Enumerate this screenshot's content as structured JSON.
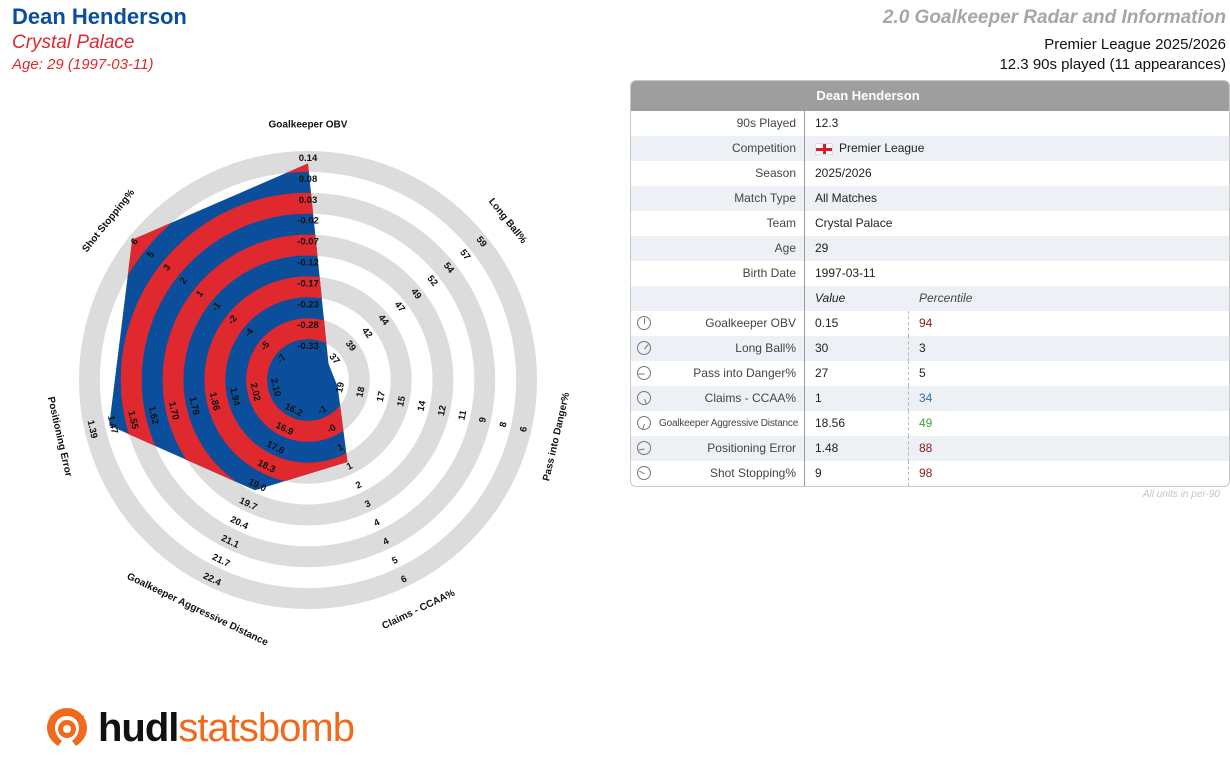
{
  "header": {
    "player_name": "Dean Henderson",
    "team": "Crystal Palace",
    "age_line": "Age: 29 (1997-03-11)",
    "report_title": "2.0 Goalkeeper Radar and Information",
    "competition_line": "Premier League 2025/2026",
    "played_line": "12.3 90s played (11 appearances)"
  },
  "colors": {
    "primary_blue": "#0b4f9c",
    "secondary_red": "#e0282f",
    "ring_grey": "#dcdcdc",
    "pct_high": "#8b1a1a",
    "pct_mid": "#3e9e3e",
    "pct_low_blue": "#2b6fad",
    "pct_low": "#222222"
  },
  "chart_data": {
    "type": "radar",
    "rings": 5,
    "axes": [
      {
        "name": "Goalkeeper OBV",
        "ticks": [
          "0.14",
          "0.08",
          "0.03",
          "-0.02",
          "-0.07",
          "-0.12",
          "-0.17",
          "-0.23",
          "-0.28",
          "-0.33"
        ],
        "value": 0.15,
        "percentile": 94
      },
      {
        "name": "Long Ball%",
        "ticks": [
          "59",
          "57",
          "54",
          "52",
          "49",
          "47",
          "44",
          "42",
          "39",
          "37"
        ],
        "value": 30,
        "percentile": 3
      },
      {
        "name": "Pass into Danger%",
        "ticks": [
          "6",
          "8",
          "9",
          "11",
          "12",
          "14",
          "15",
          "17",
          "18",
          "19"
        ],
        "value": 27,
        "percentile": 5
      },
      {
        "name": "Claims - CCAA%",
        "ticks": [
          "6",
          "5",
          "4",
          "4",
          "3",
          "2",
          "1",
          "1",
          "-0",
          "-1"
        ],
        "value": 1,
        "percentile": 34
      },
      {
        "name": "Goalkeeper Aggressive Distance",
        "ticks": [
          "22.4",
          "21.7",
          "21.1",
          "20.4",
          "19.7",
          "19.0",
          "18.3",
          "17.6",
          "16.9",
          "16.2"
        ],
        "value": 18.56,
        "percentile": 49
      },
      {
        "name": "Positioning Error",
        "ticks": [
          "1.39",
          "1.47",
          "1.55",
          "1.62",
          "1.70",
          "1.78",
          "1.86",
          "1.94",
          "2.02",
          "2.10"
        ],
        "value": 1.48,
        "percentile": 88
      },
      {
        "name": "Shot Stopping%",
        "ticks": [
          "6",
          "5",
          "3",
          "2",
          "1",
          "-1",
          "-2",
          "-4",
          "-5",
          "-7"
        ],
        "value": 9,
        "percentile": 98
      }
    ]
  },
  "info_table": {
    "title": "Dean Henderson",
    "rows": [
      {
        "label": "90s Played",
        "value": "12.3"
      },
      {
        "label": "Competition",
        "value": "Premier League",
        "flag": "england-flag-icon"
      },
      {
        "label": "Season",
        "value": "2025/2026"
      },
      {
        "label": "Match Type",
        "value": "All Matches"
      },
      {
        "label": "Team",
        "value": "Crystal Palace"
      },
      {
        "label": "Age",
        "value": "29"
      },
      {
        "label": "Birth Date",
        "value": "1997-03-11"
      }
    ],
    "col_value": "Value",
    "col_percentile": "Percentile",
    "metrics": [
      {
        "label": "Goalkeeper OBV",
        "value": "0.15",
        "percentile": "94",
        "pct_color": "#8b1a1a",
        "icon": "gauge-icon"
      },
      {
        "label": "Long Ball%",
        "value": "30",
        "percentile": "3",
        "pct_color": "#222222",
        "icon": "gauge-icon"
      },
      {
        "label": "Pass into Danger%",
        "value": "27",
        "percentile": "5",
        "pct_color": "#222222",
        "icon": "gauge-icon"
      },
      {
        "label": "Claims - CCAA%",
        "value": "1",
        "percentile": "34",
        "pct_color": "#2b6fad",
        "icon": "gauge-icon"
      },
      {
        "label": "Goalkeeper Aggressive Distance",
        "value": "18.56",
        "percentile": "49",
        "pct_color": "#3e9e3e",
        "icon": "gauge-icon"
      },
      {
        "label": "Positioning Error",
        "value": "1.48",
        "percentile": "88",
        "pct_color": "#8b1a1a",
        "icon": "gauge-icon"
      },
      {
        "label": "Shot Stopping%",
        "value": "9",
        "percentile": "98",
        "pct_color": "#8b1a1a",
        "icon": "gauge-icon"
      }
    ],
    "footnote": "All units in per-90"
  },
  "logo": {
    "word_a": "hudl",
    "word_b": "statsbomb",
    "icon": "hudl-logo-icon"
  }
}
